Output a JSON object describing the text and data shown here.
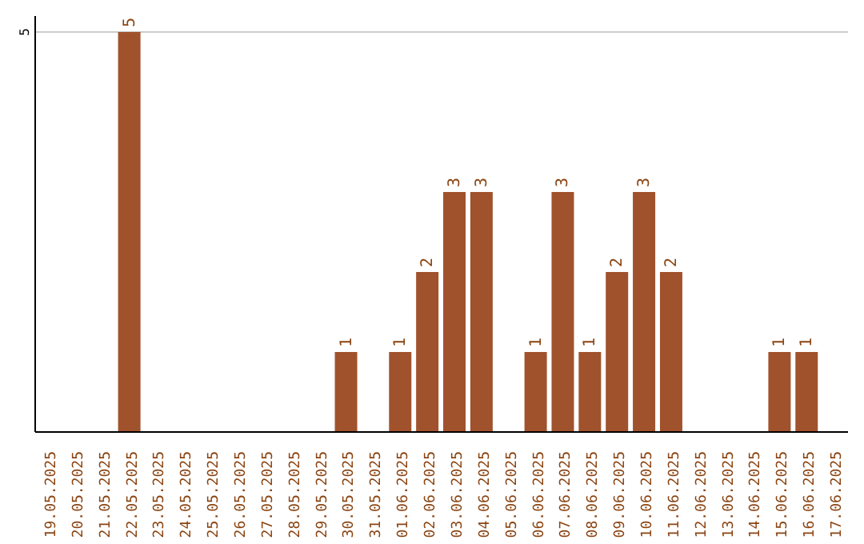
{
  "chart_data": {
    "type": "bar",
    "categories": [
      "19.05.2025",
      "20.05.2025",
      "21.05.2025",
      "22.05.2025",
      "23.05.2025",
      "24.05.2025",
      "25.05.2025",
      "26.05.2025",
      "27.05.2025",
      "28.05.2025",
      "29.05.2025",
      "30.05.2025",
      "31.05.2025",
      "01.06.2025",
      "02.06.2025",
      "03.06.2025",
      "04.06.2025",
      "05.06.2025",
      "06.06.2025",
      "07.06.2025",
      "08.06.2025",
      "09.06.2025",
      "10.06.2025",
      "11.06.2025",
      "12.06.2025",
      "13.06.2025",
      "14.06.2025",
      "15.06.2025",
      "16.06.2025",
      "17.06.2025"
    ],
    "values": [
      null,
      null,
      null,
      5,
      null,
      null,
      null,
      null,
      null,
      null,
      null,
      1,
      null,
      1,
      2,
      3,
      3,
      null,
      1,
      3,
      1,
      2,
      3,
      2,
      null,
      null,
      null,
      1,
      1,
      null
    ],
    "color": "#a0522d",
    "ylim": [
      0,
      5.2
    ],
    "yticks": [
      5
    ],
    "grid": "y",
    "data_labels": true
  }
}
